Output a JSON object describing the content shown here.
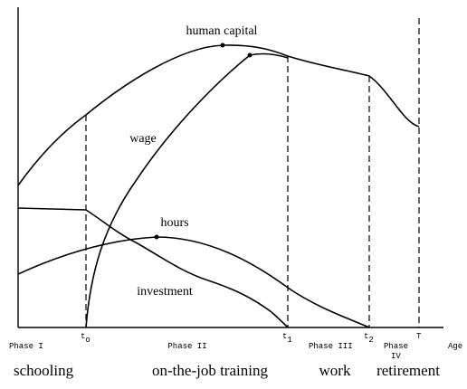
{
  "curves": {
    "human_capital": "human capital",
    "wage": "wage",
    "hours": "hours",
    "investment": "investment"
  },
  "axis": {
    "x_label": "Age",
    "markers": [
      {
        "main": "t",
        "sub": "o"
      },
      {
        "main": "t",
        "sub": "1"
      },
      {
        "main": "t",
        "sub": "2"
      },
      {
        "main": "T"
      }
    ],
    "phases": [
      [
        "Phase I"
      ],
      [
        "Phase II"
      ],
      [
        "Phase III"
      ],
      [
        "Phase",
        "IV"
      ]
    ]
  },
  "stages": [
    "schooling",
    "on-the-job training",
    "work",
    "retirement"
  ]
}
